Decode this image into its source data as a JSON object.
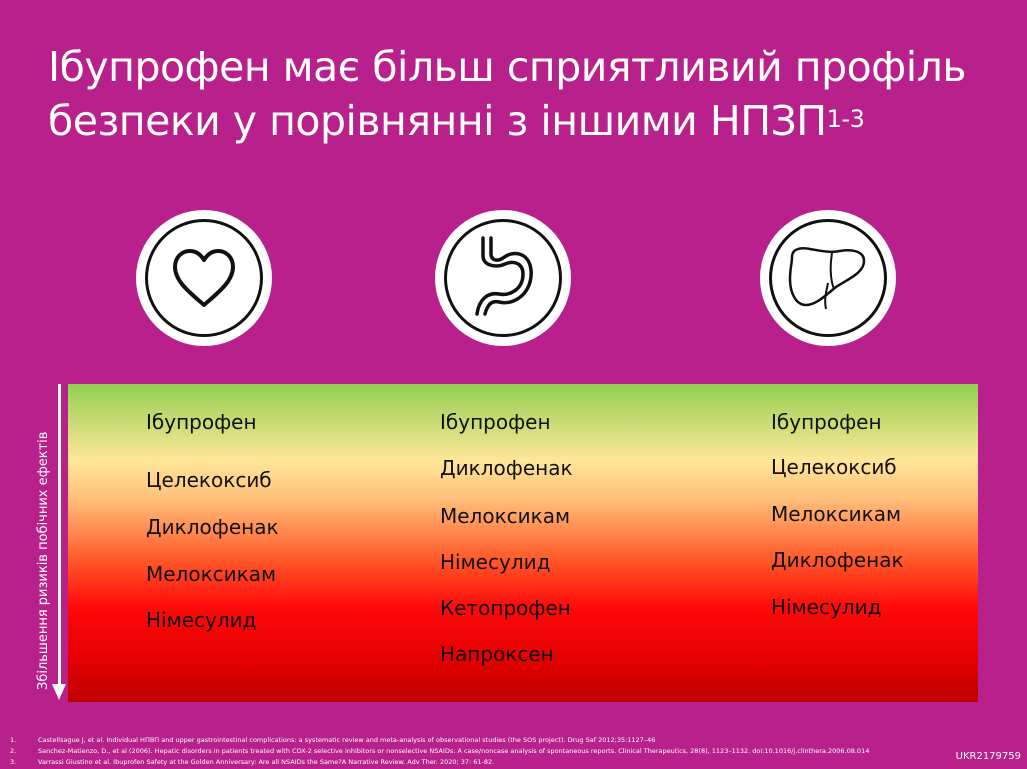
{
  "title": {
    "line1": "Ібупрофен має більш сприятливий профіль",
    "line2": "безпеки у порівнянні з іншими НПЗП",
    "superscript": "1-3"
  },
  "icons": [
    "heart-icon",
    "stomach-icon",
    "liver-icon"
  ],
  "axis_label": "Збільшення ризиків побічних ефектів",
  "columns": [
    {
      "category": "cardiovascular",
      "items": [
        "Ібупрофен",
        "Целекоксиб",
        "Диклофенак",
        "Мелоксикам",
        "Німесулид"
      ]
    },
    {
      "category": "gastrointestinal",
      "items": [
        "Ібупрофен",
        "Диклофенак",
        "Мелоксикам",
        "Німесулид",
        "Кетопрофен",
        "Напроксен"
      ]
    },
    {
      "category": "hepatic",
      "items": [
        "Ібупрофен",
        "Целекоксиб",
        "Мелоксикам",
        "Диклофенак",
        "Німесулид"
      ]
    }
  ],
  "references": [
    {
      "n": "1.",
      "text": "Castellsague J, et al. Individual НПВП and upper gastrointestinal complications: a systematic review and meta-analysis of observational studies (the SOS project). Drug Saf 2012;35:1127–46"
    },
    {
      "n": "2.",
      "text": "Sanchez-Matienzo, D., et al (2006). Hepatic disorders in patients treated with COX-2 selective inhibitors or nonselective NSAIDs: A case/noncase analysis of spontaneous reports. Clinical Therapeutics, 28(8), 1123–1132. doi:10.1016/j.clinthera.2006.08.014"
    },
    {
      "n": "3.",
      "text": "Varrassi Giustino et al. Ibuprofen Safety at the Golden Anniversary: Are all NSAIDs the Same?A Narrative Review. Adv Ther. 2020; 37: 61-82."
    }
  ],
  "code": "UKR2179759",
  "colors": {
    "background": "#b8218b",
    "gradient_top": "#92d050",
    "gradient_mid": "#ffe699",
    "gradient_red": "#ff0a0a",
    "gradient_bottom": "#c00000"
  }
}
